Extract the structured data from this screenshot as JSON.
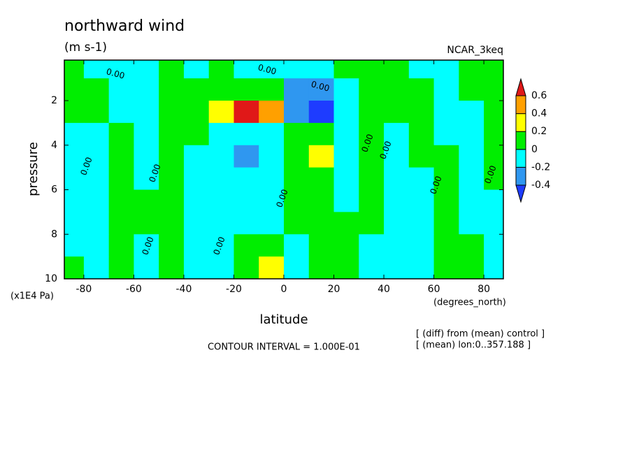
{
  "chart_data": {
    "type": "contour",
    "title": "northward wind",
    "subtitle": "(m s-1)",
    "model": "NCAR_3keq",
    "x_label": "latitude",
    "x_unit": "(degrees_north)",
    "y_label": "pressure",
    "y_unit": "(x1E4 Pa)",
    "contour_interval": "CONTOUR INTERVAL = 1.000E-01",
    "notes": [
      "[ (diff) from (mean) control ]",
      "[ (mean) lon:0..357.188 ]"
    ],
    "contour_label": "0.00",
    "xlim": [
      -87.8,
      87.8
    ],
    "xticks": [
      -80,
      -60,
      -40,
      -20,
      0,
      20,
      40,
      60,
      80
    ],
    "ylim": [
      10,
      0.18
    ],
    "yticks": [
      2,
      4,
      6,
      8,
      10
    ],
    "levels": [
      -0.4,
      -0.2,
      0,
      0.2,
      0.4,
      0.6
    ],
    "colors": [
      "#1e3cff",
      "#2f97f0",
      "#00ffff",
      "#00ee00",
      "#ffff00",
      "#ffa000",
      "#e01818"
    ],
    "lat": [
      -85,
      -75,
      -65,
      -55,
      -45,
      -35,
      -25,
      -15,
      -5,
      5,
      15,
      25,
      35,
      45,
      55,
      65,
      75,
      85
    ],
    "lev": [
      0.5,
      1.5,
      2.5,
      3.5,
      4.5,
      5.5,
      6.5,
      7.5,
      8.5,
      9.5
    ],
    "values": [
      [
        0.05,
        -0.05,
        -0.05,
        -0.05,
        0.05,
        -0.05,
        0.05,
        -0.05,
        -0.05,
        -0.05,
        -0.05,
        0.05,
        0.05,
        0.05,
        -0.05,
        -0.05,
        0.05,
        0.05
      ],
      [
        0.05,
        0.05,
        -0.05,
        -0.05,
        0.05,
        0.05,
        0.05,
        0.15,
        0.1,
        -0.25,
        -0.3,
        -0.05,
        0.05,
        0.05,
        0.05,
        -0.05,
        0.05,
        0.05
      ],
      [
        0.05,
        0.05,
        -0.05,
        -0.05,
        0.05,
        0.05,
        0.25,
        0.65,
        0.45,
        -0.35,
        -0.45,
        -0.1,
        0.05,
        0.05,
        0.05,
        -0.05,
        -0.05,
        0.05
      ],
      [
        -0.05,
        -0.05,
        0.05,
        -0.05,
        0.05,
        0.05,
        -0.05,
        -0.15,
        -0.05,
        0.05,
        0.1,
        -0.05,
        0.05,
        -0.05,
        0.05,
        -0.05,
        -0.05,
        0.05
      ],
      [
        -0.05,
        -0.05,
        0.05,
        -0.05,
        0.05,
        -0.05,
        -0.1,
        -0.25,
        -0.05,
        0.15,
        0.25,
        -0.05,
        0.05,
        -0.05,
        0.05,
        0.05,
        -0.05,
        0.05
      ],
      [
        -0.05,
        -0.05,
        0.05,
        -0.05,
        0.05,
        -0.05,
        -0.05,
        -0.15,
        -0.05,
        0.05,
        0.15,
        -0.05,
        0.05,
        -0.05,
        -0.05,
        0.05,
        -0.05,
        0.05
      ],
      [
        -0.05,
        -0.05,
        0.05,
        0.05,
        0.05,
        -0.05,
        -0.05,
        -0.05,
        -0.05,
        0.05,
        0.05,
        -0.05,
        0.05,
        -0.05,
        -0.05,
        0.05,
        -0.05,
        -0.05
      ],
      [
        -0.05,
        -0.05,
        0.05,
        0.05,
        0.05,
        -0.05,
        -0.05,
        -0.05,
        -0.05,
        0.05,
        0.05,
        0.05,
        0.05,
        -0.05,
        -0.05,
        0.05,
        -0.05,
        -0.05
      ],
      [
        -0.05,
        -0.05,
        0.05,
        -0.05,
        0.05,
        -0.05,
        -0.05,
        0.05,
        0.05,
        -0.05,
        0.05,
        0.05,
        -0.05,
        -0.05,
        -0.05,
        0.05,
        0.05,
        -0.05
      ],
      [
        0.05,
        -0.05,
        0.05,
        -0.05,
        0.05,
        -0.05,
        -0.05,
        0.05,
        0.25,
        -0.15,
        0.05,
        0.05,
        -0.05,
        -0.05,
        -0.05,
        0.05,
        0.05,
        -0.05
      ]
    ]
  }
}
